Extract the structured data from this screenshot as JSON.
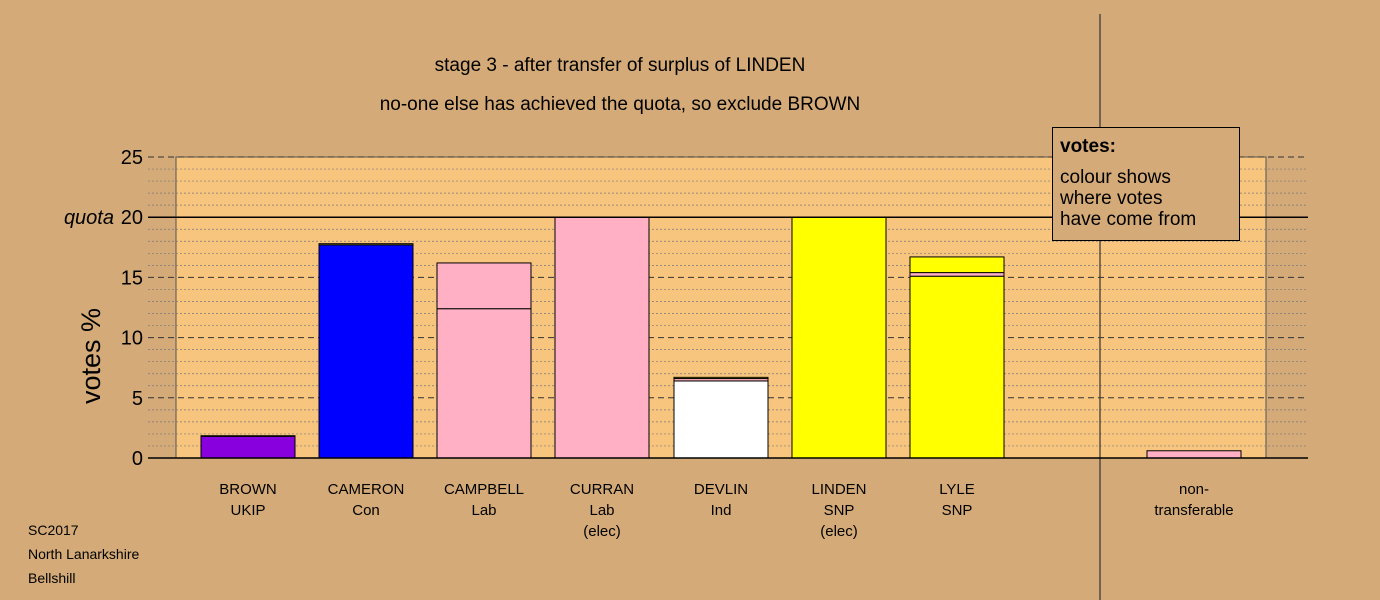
{
  "title_lines": [
    "stage 3 - after transfer of surplus of LINDEN",
    "no-one else has achieved the quota, so exclude BROWN"
  ],
  "legend": {
    "title": "votes:",
    "lines": [
      "colour shows",
      "where votes",
      "have come from"
    ]
  },
  "footer": [
    "SC2017",
    "North Lanarkshire",
    "Bellshill"
  ],
  "colors": {
    "background": "#d4aa78",
    "plot": "#f8c57f",
    "UKIP": "#8800dd",
    "Con": "#0000ff",
    "Lab": "#ffb0c4",
    "Ind": "#ffffff",
    "SNP": "#ffff00"
  },
  "chart_data": {
    "type": "bar",
    "stacked": true,
    "ylabel": "votes %",
    "ylim": [
      0,
      25
    ],
    "yticks": [
      0,
      5,
      10,
      15,
      20,
      25
    ],
    "quota": 20,
    "quota_label": "quota",
    "grid": true,
    "categories": [
      {
        "lines": [
          "BROWN",
          "UKIP"
        ],
        "segments": [
          {
            "from": "UKIP",
            "value": 1.8
          },
          {
            "from": "SNP",
            "value": 0.05
          }
        ]
      },
      {
        "lines": [
          "CAMERON",
          "Con"
        ],
        "segments": [
          {
            "from": "Con",
            "value": 17.7
          },
          {
            "from": "SNP",
            "value": 0.1
          }
        ]
      },
      {
        "lines": [
          "CAMPBELL",
          "Lab"
        ],
        "segments": [
          {
            "from": "Lab",
            "value": 12.4
          },
          {
            "from": "Lab",
            "value": 3.8
          }
        ]
      },
      {
        "lines": [
          "CURRAN",
          "Lab",
          "(elec)"
        ],
        "segments": [
          {
            "from": "Lab",
            "value": 20.0
          }
        ]
      },
      {
        "lines": [
          "DEVLIN",
          "Ind"
        ],
        "segments": [
          {
            "from": "Ind",
            "value": 6.4
          },
          {
            "from": "Lab",
            "value": 0.2
          },
          {
            "from": "SNP",
            "value": 0.1
          }
        ]
      },
      {
        "lines": [
          "LINDEN",
          "SNP",
          "(elec)"
        ],
        "segments": [
          {
            "from": "SNP",
            "value": 20.0
          }
        ]
      },
      {
        "lines": [
          "LYLE",
          "SNP"
        ],
        "segments": [
          {
            "from": "SNP",
            "value": 15.1
          },
          {
            "from": "Lab",
            "value": 0.3
          },
          {
            "from": "SNP",
            "value": 1.3
          }
        ]
      },
      {
        "lines": [
          "non-",
          "transferable"
        ],
        "segments": [
          {
            "from": "Lab",
            "value": 0.6
          }
        ]
      }
    ]
  }
}
